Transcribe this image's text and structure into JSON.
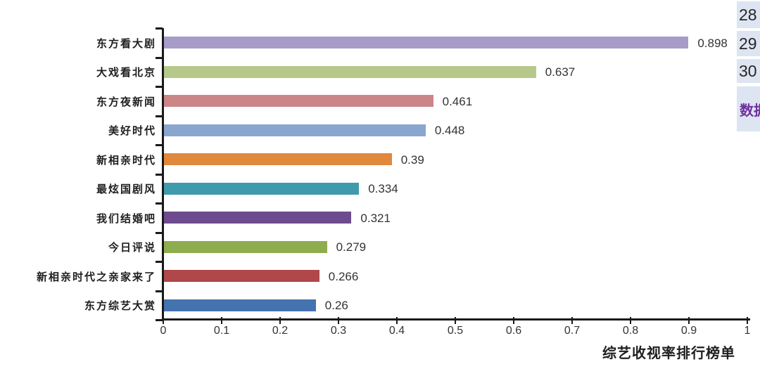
{
  "chart_data": {
    "type": "bar",
    "orientation": "horizontal",
    "title": "",
    "xlabel": "综艺收视率排行榜单",
    "ylabel": "",
    "xlim": [
      0,
      1
    ],
    "grid": false,
    "legend": "none",
    "categories": [
      "东方看大剧",
      "大戏看北京",
      "东方夜新闻",
      "美好时代",
      "新相亲时代",
      "最炫国剧风",
      "我们结婚吧",
      "今日评说",
      "新相亲时代之亲家来了",
      "东方综艺大赏"
    ],
    "values": [
      0.898,
      0.637,
      0.461,
      0.448,
      0.39,
      0.334,
      0.321,
      0.279,
      0.266,
      0.26
    ],
    "value_labels": [
      "0.898",
      "0.637",
      "0.461",
      "0.448",
      "0.39",
      "0.334",
      "0.321",
      "0.279",
      "0.266",
      "0.26"
    ],
    "colors": [
      "#a79cc8",
      "#b6c98b",
      "#cb8587",
      "#8ba6ce",
      "#e0883c",
      "#3f9aad",
      "#6d4b8d",
      "#8ead4e",
      "#b0474a",
      "#4473af"
    ],
    "x_ticks": [
      "0",
      "0.1",
      "0.2",
      "0.3",
      "0.4",
      "0.5",
      "0.6",
      "0.7",
      "0.8",
      "0.9",
      "1"
    ]
  },
  "sidebar": {
    "background": "#dde5f2",
    "cells": [
      {
        "text": "28"
      },
      {
        "text": "29"
      },
      {
        "text": "30"
      }
    ],
    "label": {
      "text": "数据",
      "color": "#7030a0"
    }
  },
  "colors": {
    "axis": "#1a1a1a",
    "tick_text": "#333333"
  }
}
